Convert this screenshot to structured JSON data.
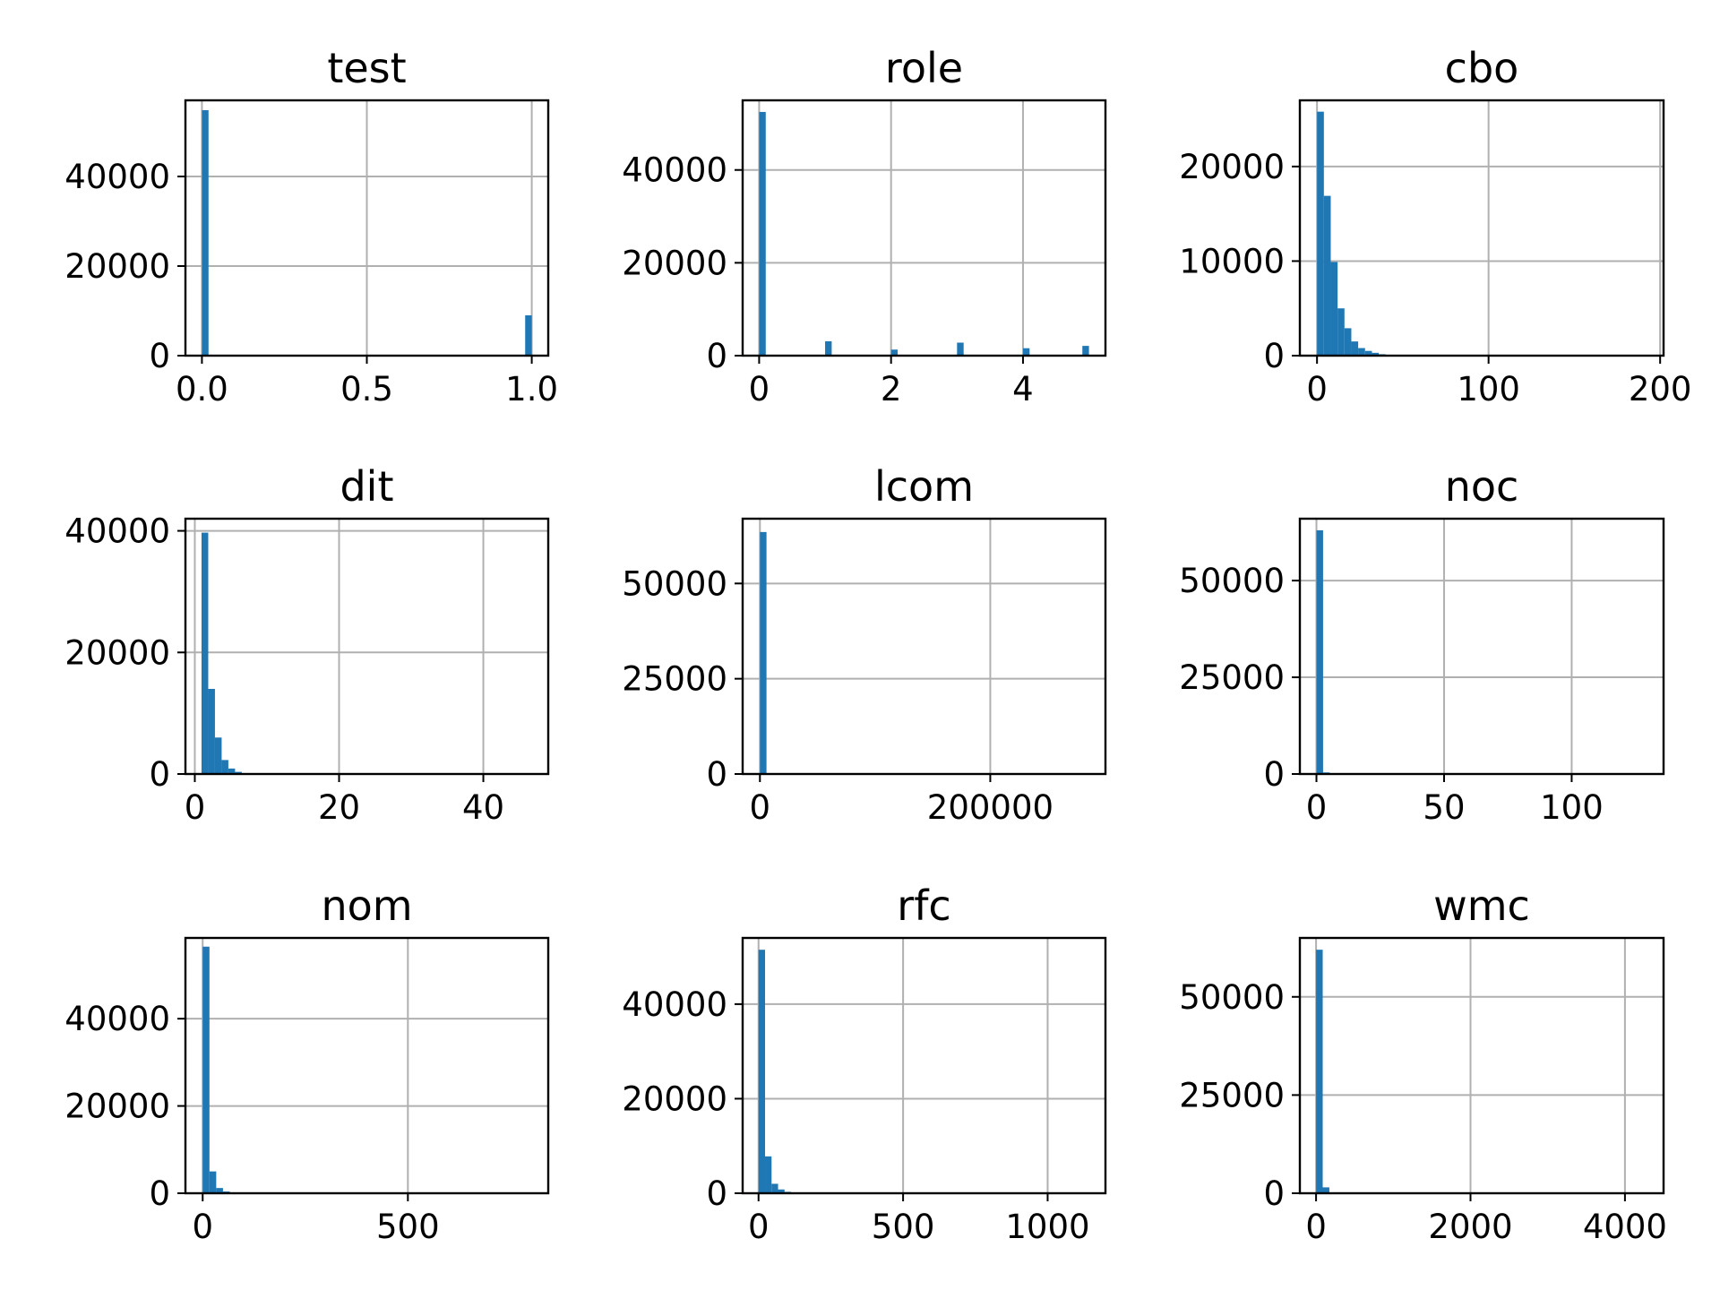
{
  "chart_data": [
    {
      "type": "bar",
      "title": "test",
      "xlim": [
        -0.05,
        1.05
      ],
      "ylim": [
        0,
        57000
      ],
      "xticks": [
        0.0,
        0.5,
        1.0
      ],
      "xtick_labels": [
        "0.0",
        "0.5",
        "1.0"
      ],
      "yticks": [
        0,
        20000,
        40000
      ],
      "ytick_labels": [
        "0",
        "20000",
        "40000"
      ],
      "grid": true,
      "bar_color": "#1f77b4",
      "bin_width": 0.02,
      "bars": [
        {
          "x": 0.0,
          "value": 54800
        },
        {
          "x": 0.98,
          "value": 9000
        }
      ]
    },
    {
      "type": "bar",
      "title": "role",
      "xlim": [
        -0.25,
        5.25
      ],
      "ylim": [
        0,
        55000
      ],
      "xticks": [
        0,
        2,
        4
      ],
      "xtick_labels": [
        "0",
        "2",
        "4"
      ],
      "yticks": [
        0,
        20000,
        40000
      ],
      "ytick_labels": [
        "0",
        "20000",
        "40000"
      ],
      "grid": true,
      "bar_color": "#1f77b4",
      "bin_width": 0.1,
      "bars": [
        {
          "x": 0.0,
          "value": 52500
        },
        {
          "x": 1.0,
          "value": 3100
        },
        {
          "x": 2.0,
          "value": 1300
        },
        {
          "x": 3.0,
          "value": 2800
        },
        {
          "x": 4.0,
          "value": 1600
        },
        {
          "x": 4.9,
          "value": 2100
        }
      ]
    },
    {
      "type": "bar",
      "title": "cbo",
      "xlim": [
        -10,
        202
      ],
      "ylim": [
        0,
        27000
      ],
      "xticks": [
        0,
        100,
        200
      ],
      "xtick_labels": [
        "0",
        "100",
        "200"
      ],
      "yticks": [
        0,
        10000,
        20000
      ],
      "ytick_labels": [
        "0",
        "10000",
        "20000"
      ],
      "grid": true,
      "bar_color": "#1f77b4",
      "bin_width": 4,
      "bars": [
        {
          "x": 0,
          "value": 25800
        },
        {
          "x": 4,
          "value": 16900
        },
        {
          "x": 8,
          "value": 9900
        },
        {
          "x": 12,
          "value": 5000
        },
        {
          "x": 16,
          "value": 2900
        },
        {
          "x": 20,
          "value": 1500
        },
        {
          "x": 24,
          "value": 800
        },
        {
          "x": 28,
          "value": 500
        },
        {
          "x": 32,
          "value": 300
        },
        {
          "x": 36,
          "value": 150
        }
      ]
    },
    {
      "type": "bar",
      "title": "dit",
      "xlim": [
        -1.3,
        49
      ],
      "ylim": [
        0,
        42000
      ],
      "xticks": [
        0,
        20,
        40
      ],
      "xtick_labels": [
        "0",
        "20",
        "40"
      ],
      "yticks": [
        0,
        20000,
        40000
      ],
      "ytick_labels": [
        "0",
        "20000",
        "40000"
      ],
      "grid": true,
      "bar_color": "#1f77b4",
      "bin_width": 0.93,
      "bars": [
        {
          "x": 0.93,
          "value": 39700
        },
        {
          "x": 1.86,
          "value": 14000
        },
        {
          "x": 2.79,
          "value": 6000
        },
        {
          "x": 3.72,
          "value": 2300
        },
        {
          "x": 4.65,
          "value": 900
        },
        {
          "x": 5.58,
          "value": 350
        },
        {
          "x": 6.51,
          "value": 100
        }
      ]
    },
    {
      "type": "bar",
      "title": "lcom",
      "xlim": [
        -15000,
        300000
      ],
      "ylim": [
        0,
        67000
      ],
      "xticks": [
        0,
        200000
      ],
      "xtick_labels": [
        "0",
        "200000"
      ],
      "yticks": [
        0,
        25000,
        50000
      ],
      "ytick_labels": [
        "0",
        "25000",
        "50000"
      ],
      "grid": true,
      "bar_color": "#1f77b4",
      "bin_width": 5700,
      "bars": [
        {
          "x": 0,
          "value": 63500
        }
      ]
    },
    {
      "type": "bar",
      "title": "noc",
      "xlim": [
        -6.5,
        136
      ],
      "ylim": [
        0,
        66000
      ],
      "xticks": [
        0,
        50,
        100
      ],
      "xtick_labels": [
        "0",
        "50",
        "100"
      ],
      "yticks": [
        0,
        25000,
        50000
      ],
      "ytick_labels": [
        "0",
        "25000",
        "50000"
      ],
      "grid": true,
      "bar_color": "#1f77b4",
      "bin_width": 2.6,
      "bars": [
        {
          "x": 0,
          "value": 63000
        },
        {
          "x": 2.6,
          "value": 400
        }
      ]
    },
    {
      "type": "bar",
      "title": "nom",
      "xlim": [
        -42,
        842
      ],
      "ylim": [
        0,
        58500
      ],
      "xticks": [
        0,
        500
      ],
      "xtick_labels": [
        "0",
        "500"
      ],
      "yticks": [
        0,
        20000,
        40000
      ],
      "ytick_labels": [
        "0",
        "20000",
        "40000"
      ],
      "grid": true,
      "bar_color": "#1f77b4",
      "bin_width": 16.5,
      "bars": [
        {
          "x": 0,
          "value": 56500
        },
        {
          "x": 16.5,
          "value": 5000
        },
        {
          "x": 33,
          "value": 1200
        },
        {
          "x": 49.5,
          "value": 400
        },
        {
          "x": 66,
          "value": 150
        }
      ]
    },
    {
      "type": "bar",
      "title": "rfc",
      "xlim": [
        -55,
        1200
      ],
      "ylim": [
        0,
        54000
      ],
      "xticks": [
        0,
        500,
        1000
      ],
      "xtick_labels": [
        "0",
        "500",
        "1000"
      ],
      "yticks": [
        0,
        20000,
        40000
      ],
      "ytick_labels": [
        "0",
        "20000",
        "40000"
      ],
      "grid": true,
      "bar_color": "#1f77b4",
      "bin_width": 22.5,
      "bars": [
        {
          "x": 0,
          "value": 51500
        },
        {
          "x": 22.5,
          "value": 7800
        },
        {
          "x": 45,
          "value": 2000
        },
        {
          "x": 67.5,
          "value": 800
        },
        {
          "x": 90,
          "value": 300
        },
        {
          "x": 112.5,
          "value": 100
        }
      ]
    },
    {
      "type": "bar",
      "title": "wmc",
      "xlim": [
        -210,
        4500
      ],
      "ylim": [
        0,
        65000
      ],
      "xticks": [
        0,
        2000,
        4000
      ],
      "xtick_labels": [
        "0",
        "2000",
        "4000"
      ],
      "yticks": [
        0,
        25000,
        50000
      ],
      "ytick_labels": [
        "0",
        "25000",
        "50000"
      ],
      "grid": true,
      "bar_color": "#1f77b4",
      "bin_width": 86,
      "bars": [
        {
          "x": 0,
          "value": 62000
        },
        {
          "x": 86,
          "value": 1500
        }
      ]
    }
  ]
}
